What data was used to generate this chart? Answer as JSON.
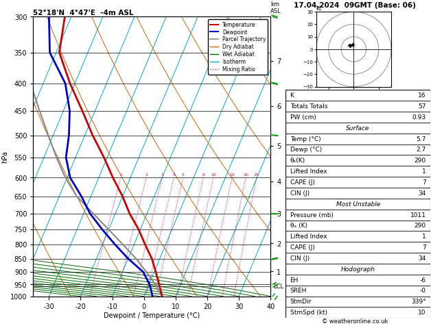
{
  "title_left": "52°18'N  4°47'E  -4m ASL",
  "title_right": "17.04.2024  09GMT (Base: 06)",
  "xlabel": "Dewpoint / Temperature (°C)",
  "ylabel_left": "hPa",
  "bg_color": "#ffffff",
  "p_min": 300,
  "p_max": 1000,
  "temp_min": -35,
  "temp_max": 40,
  "temp_ticks": [
    -30,
    -20,
    -10,
    0,
    10,
    20,
    30,
    40
  ],
  "pressure_ticks": [
    300,
    350,
    400,
    450,
    500,
    550,
    600,
    650,
    700,
    750,
    800,
    850,
    900,
    950,
    1000
  ],
  "km_ticks": [
    1,
    2,
    3,
    4,
    5,
    6,
    7
  ],
  "km_pressures": [
    898,
    796,
    700,
    609,
    523,
    441,
    363
  ],
  "lcl_pressure": 958,
  "skew_factor": 37.0,
  "temperature_profile": {
    "pressures": [
      1000,
      975,
      950,
      900,
      850,
      800,
      750,
      700,
      650,
      600,
      550,
      500,
      450,
      400,
      350,
      300
    ],
    "temps": [
      5.7,
      4.5,
      3.2,
      0.5,
      -2.5,
      -6.5,
      -10.5,
      -15.5,
      -20.0,
      -25.5,
      -31.0,
      -37.5,
      -44.0,
      -51.5,
      -59.0,
      -62.0
    ]
  },
  "dewpoint_profile": {
    "pressures": [
      1000,
      975,
      950,
      900,
      850,
      800,
      750,
      700,
      650,
      600,
      550,
      500,
      450,
      400,
      350,
      300
    ],
    "temps": [
      2.7,
      1.5,
      0.2,
      -3.5,
      -10.0,
      -16.0,
      -22.0,
      -28.0,
      -33.0,
      -39.0,
      -43.0,
      -45.0,
      -48.0,
      -53.0,
      -62.0,
      -67.0
    ]
  },
  "parcel_profile": {
    "pressures": [
      1000,
      975,
      950,
      900,
      850,
      800,
      750,
      700,
      650,
      600,
      550,
      500,
      450,
      400,
      350,
      300
    ],
    "temps": [
      5.7,
      3.8,
      2.0,
      -2.5,
      -7.5,
      -13.5,
      -20.0,
      -27.0,
      -34.5,
      -40.5,
      -46.0,
      -51.5,
      -57.5,
      -64.0,
      -71.0,
      -77.0
    ]
  },
  "dry_adiabat_color": "#cc6600",
  "wet_adiabat_color": "#006600",
  "isotherm_color": "#00aacc",
  "mixing_ratio_color": "#cc0066",
  "temp_color": "#cc0000",
  "dewpoint_color": "#0000cc",
  "parcel_color": "#888888",
  "mixing_ratios": [
    1,
    2,
    3,
    4,
    5,
    8,
    10,
    15,
    20,
    25
  ],
  "table_data": {
    "K": "16",
    "Totals Totals": "57",
    "PW (cm)": "0.93",
    "surface_temp": "5.7",
    "surface_dewp": "2.7",
    "surface_thetae": "290",
    "surface_li": "1",
    "surface_cape": "7",
    "surface_cin": "34",
    "mu_pressure": "1011",
    "mu_thetae": "290",
    "mu_li": "1",
    "mu_cape": "7",
    "mu_cin": "34",
    "EH": "-6",
    "SREH": "-0",
    "StmDir": "339°",
    "StmSpd": "10"
  },
  "hodo_trace_u": [
    -2,
    -3,
    -4,
    -3,
    -2,
    -1
  ],
  "hodo_trace_v": [
    3,
    4,
    3,
    2,
    3,
    4
  ],
  "wind_barb_pressures": [
    1000,
    950,
    850,
    700,
    500,
    400,
    300
  ],
  "wind_barb_speeds": [
    5,
    8,
    12,
    18,
    25,
    30,
    35
  ],
  "wind_barb_dirs": [
    200,
    220,
    250,
    270,
    280,
    290,
    300
  ]
}
